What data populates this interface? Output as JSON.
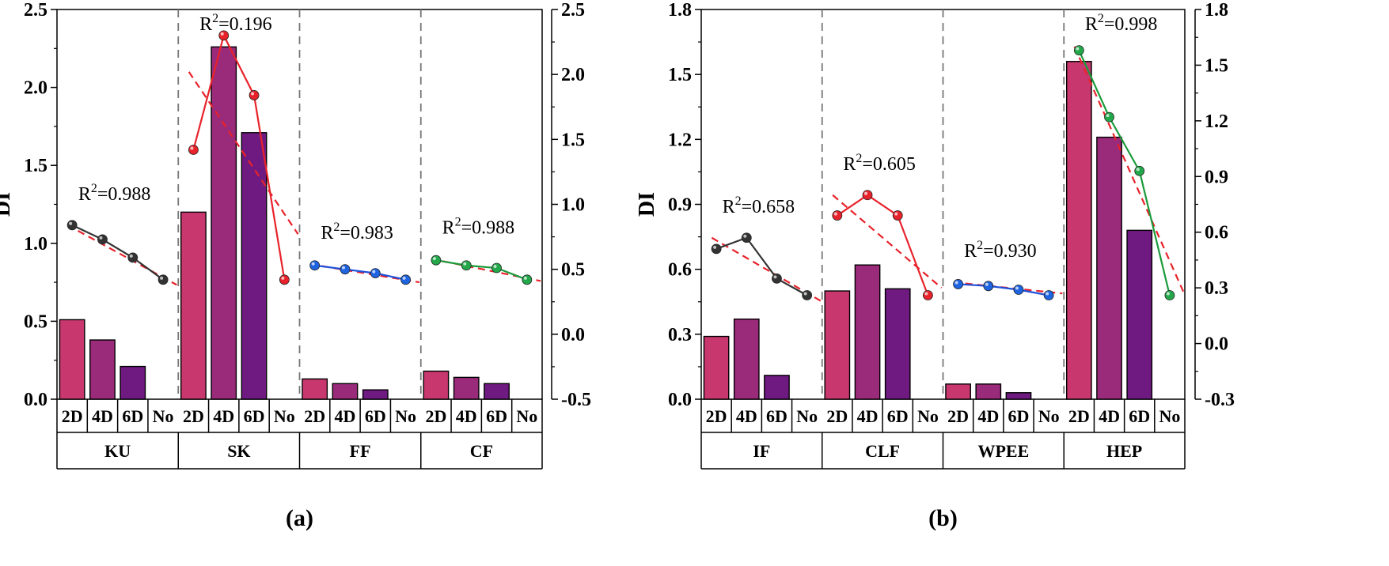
{
  "panels": [
    {
      "caption": "(a)",
      "ylabel": "DI",
      "yleft": {
        "min": 0,
        "max": 2.5,
        "ticks": [
          "0.0",
          "0.5",
          "1.0",
          "1.5",
          "2.0",
          "2.5"
        ]
      },
      "yright": {
        "min": -0.5,
        "max": 2.5,
        "ticks": [
          "-0.5",
          "0.0",
          "0.5",
          "1.0",
          "1.5",
          "2.0",
          "2.5"
        ]
      },
      "categories": [
        "2D",
        "4D",
        "6D",
        "No"
      ],
      "bar_colors": [
        "#c8386f",
        "#9a2a7a",
        "#6f1a80"
      ],
      "groups": [
        {
          "name": "KU",
          "bars": [
            0.51,
            0.38,
            0.21
          ],
          "line": [
            0.84,
            0.73,
            0.59,
            0.42
          ],
          "line_color": "#333333",
          "marker_color": "#333333",
          "r2_base": "R",
          "r2_exp": "2",
          "r2_val": "=0.988",
          "fit": [
            0.84,
            0.38
          ]
        },
        {
          "name": "SK",
          "bars": [
            1.2,
            2.26,
            1.71
          ],
          "line": [
            1.42,
            2.3,
            1.84,
            0.42
          ],
          "line_color": "#e8222a",
          "marker_color": "#e8222a",
          "r2_base": "R",
          "r2_exp": "2",
          "r2_val": "=0.196",
          "fit": [
            2.02,
            0.77
          ]
        },
        {
          "name": "FF",
          "bars": [
            0.13,
            0.1,
            0.06
          ],
          "line": [
            0.53,
            0.5,
            0.47,
            0.42
          ],
          "line_color": "#1e4fd8",
          "marker_color": "#1e63e0",
          "r2_base": "R",
          "r2_exp": "2",
          "r2_val": "=0.983",
          "fit": [
            0.54,
            0.4
          ]
        },
        {
          "name": "CF",
          "bars": [
            0.18,
            0.14,
            0.1
          ],
          "line": [
            0.57,
            0.53,
            0.51,
            0.42
          ],
          "line_color": "#1a9a3a",
          "marker_color": "#22a84a",
          "r2_base": "R",
          "r2_exp": "2",
          "r2_val": "=0.988",
          "fit": [
            0.58,
            0.41
          ]
        }
      ]
    },
    {
      "caption": "(b)",
      "ylabel": "DI",
      "yleft": {
        "min": 0,
        "max": 1.8,
        "ticks": [
          "0.0",
          "0.3",
          "0.6",
          "0.9",
          "1.2",
          "1.5",
          "1.8"
        ]
      },
      "yright": {
        "min": -0.3,
        "max": 1.8,
        "ticks": [
          "-0.3",
          "0.0",
          "0.3",
          "0.6",
          "0.9",
          "1.2",
          "1.5",
          "1.8"
        ]
      },
      "categories": [
        "2D",
        "4D",
        "6D",
        "No"
      ],
      "bar_colors": [
        "#c8386f",
        "#9a2a7a",
        "#6f1a80"
      ],
      "groups": [
        {
          "name": "IF",
          "bars": [
            0.29,
            0.37,
            0.11
          ],
          "line": [
            0.51,
            0.57,
            0.35,
            0.26
          ],
          "line_color": "#333333",
          "marker_color": "#333333",
          "r2_base": "R",
          "r2_exp": "2",
          "r2_val": "=0.658",
          "fit": [
            0.57,
            0.23
          ]
        },
        {
          "name": "CLF",
          "bars": [
            0.5,
            0.62,
            0.51
          ],
          "line": [
            0.69,
            0.8,
            0.69,
            0.26
          ],
          "line_color": "#e8222a",
          "marker_color": "#e8222a",
          "r2_base": "R",
          "r2_exp": "2",
          "r2_val": "=0.605",
          "fit": [
            0.8,
            0.3
          ]
        },
        {
          "name": "WPEE",
          "bars": [
            0.07,
            0.07,
            0.03
          ],
          "line": [
            0.32,
            0.31,
            0.29,
            0.26
          ],
          "line_color": "#1e4fd8",
          "marker_color": "#1e63e0",
          "r2_base": "R",
          "r2_exp": "2",
          "r2_val": "=0.930",
          "fit": [
            0.33,
            0.27
          ]
        },
        {
          "name": "HEP",
          "bars": [
            1.56,
            1.21,
            0.78
          ],
          "line": [
            1.58,
            1.22,
            0.93,
            0.26
          ],
          "line_color": "#1a9a3a",
          "marker_color": "#22a84a",
          "r2_base": "R",
          "r2_exp": "2",
          "r2_val": "=0.998",
          "fit": [
            1.6,
            0.28
          ]
        }
      ]
    }
  ],
  "chart_data": [
    {
      "type": "bar",
      "title": "(a)",
      "ylabel": "DI",
      "ylim": [
        0,
        2.5
      ],
      "ylim_right": [
        -0.5,
        2.5
      ],
      "categories": [
        "KU",
        "SK",
        "FF",
        "CF"
      ],
      "subcategories": [
        "2D",
        "4D",
        "6D",
        "No"
      ],
      "series": [
        {
          "name": "2D",
          "values": [
            0.51,
            1.2,
            0.13,
            0.18
          ]
        },
        {
          "name": "4D",
          "values": [
            0.38,
            2.26,
            0.1,
            0.14
          ]
        },
        {
          "name": "6D",
          "values": [
            0.21,
            1.71,
            0.06,
            0.1
          ]
        },
        {
          "name": "line (right axis)",
          "values_by_group": {
            "KU": [
              0.84,
              0.73,
              0.59,
              0.42
            ],
            "SK": [
              1.42,
              2.3,
              1.84,
              0.42
            ],
            "FF": [
              0.53,
              0.5,
              0.47,
              0.42
            ],
            "CF": [
              0.57,
              0.53,
              0.51,
              0.42
            ]
          }
        }
      ],
      "annotations": [
        "R2=0.988",
        "R2=0.196",
        "R2=0.983",
        "R2=0.988"
      ]
    },
    {
      "type": "bar",
      "title": "(b)",
      "ylabel": "DI",
      "ylim": [
        0,
        1.8
      ],
      "ylim_right": [
        -0.3,
        1.8
      ],
      "categories": [
        "IF",
        "CLF",
        "WPEE",
        "HEP"
      ],
      "subcategories": [
        "2D",
        "4D",
        "6D",
        "No"
      ],
      "series": [
        {
          "name": "2D",
          "values": [
            0.29,
            0.5,
            0.07,
            1.56
          ]
        },
        {
          "name": "4D",
          "values": [
            0.37,
            0.62,
            0.07,
            1.21
          ]
        },
        {
          "name": "6D",
          "values": [
            0.11,
            0.51,
            0.03,
            0.78
          ]
        },
        {
          "name": "line (right axis)",
          "values_by_group": {
            "IF": [
              0.51,
              0.57,
              0.35,
              0.26
            ],
            "CLF": [
              0.69,
              0.8,
              0.69,
              0.26
            ],
            "WPEE": [
              0.32,
              0.31,
              0.29,
              0.26
            ],
            "HEP": [
              1.58,
              1.22,
              0.93,
              0.26
            ]
          }
        }
      ],
      "annotations": [
        "R2=0.658",
        "R2=0.605",
        "R2=0.930",
        "R2=0.998"
      ]
    }
  ]
}
